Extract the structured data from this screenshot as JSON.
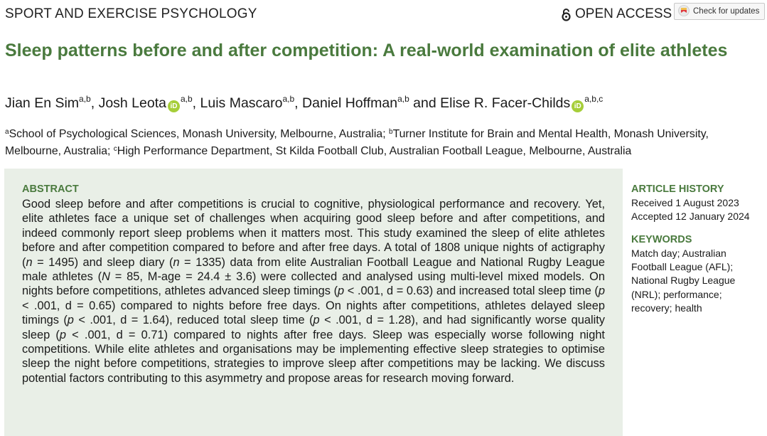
{
  "header": {
    "journal_section": "SPORT AND EXERCISE PSYCHOLOGY",
    "open_access_label": "OPEN ACCESS",
    "check_updates_label": "Check for updates"
  },
  "article": {
    "title": "Sleep patterns before and after competition: A real-world examination of elite athletes",
    "authors": [
      {
        "name": "Jian En Sim",
        "affil": "a,b",
        "orcid": false
      },
      {
        "name": "Josh Leota",
        "affil": "a,b",
        "orcid": true
      },
      {
        "name": "Luis Mascaro",
        "affil": "a,b",
        "orcid": false
      },
      {
        "name": "Daniel Hoffman",
        "affil": "a,b",
        "orcid": false
      },
      {
        "name": "Elise R. Facer-Childs",
        "affil": "a,b,c",
        "orcid": true
      }
    ],
    "author_separator": ", ",
    "author_conjunction": " and ",
    "orcid_glyph": "iD",
    "affiliations": [
      {
        "mark": "a",
        "text": "School of Psychological Sciences, Monash University, Melbourne, Australia; "
      },
      {
        "mark": "b",
        "text": "Turner Institute for Brain and Mental Health, Monash University, Melbourne, Australia; "
      },
      {
        "mark": "c",
        "text": "High Performance Department, St Kilda Football Club, Australian Football League, Melbourne, Australia"
      }
    ]
  },
  "abstract": {
    "heading": "ABSTRACT",
    "segments": [
      {
        "t": "Good sleep before and after competitions is crucial to cognitive, physiological performance and recovery. Yet, elite athletes face a unique set of challenges when acquiring good sleep before and after competitions, and indeed commonly report sleep problems when it matters most. This study examined the sleep of elite athletes before and after competition compared to before and after free days. A total of 1808 unique nights of actigraphy ("
      },
      {
        "t": "n",
        "i": true
      },
      {
        "t": " = 1495) and sleep diary ("
      },
      {
        "t": "n",
        "i": true
      },
      {
        "t": " = 1335) data from elite Australian Football League and National Rugby League male athletes ("
      },
      {
        "t": "N",
        "i": true
      },
      {
        "t": " = 85, M-age = 24.4 ± 3.6) were collected and analysed using multi-level mixed models. On nights before competitions, athletes advanced sleep timings ("
      },
      {
        "t": "p",
        "i": true
      },
      {
        "t": " < .001, d = 0.63) and increased total sleep time ("
      },
      {
        "t": "p",
        "i": true
      },
      {
        "t": " < .001, d = 0.65) compared to nights before free days. On nights after competitions, athletes delayed sleep timings ("
      },
      {
        "t": "p",
        "i": true
      },
      {
        "t": " < .001, d = 1.64), reduced total sleep time ("
      },
      {
        "t": "p",
        "i": true
      },
      {
        "t": " < .001, d = 1.28), and had significantly worse quality sleep ("
      },
      {
        "t": "p",
        "i": true
      },
      {
        "t": " < .001, d = 0.71) compared to nights after free days. Sleep was especially worse following night competitions. While elite athletes and organisations may be implementing effective sleep strategies to optimise sleep the night before competitions, strategies to improve sleep after competitions may be lacking. We discuss potential factors contributing to this asymmetry and propose areas for research moving forward."
      }
    ]
  },
  "article_history": {
    "heading": "ARTICLE HISTORY",
    "received": "Received 1 August 2023",
    "accepted": "Accepted 12 January 2024"
  },
  "keywords": {
    "heading": "KEYWORDS",
    "text": "Match day; Australian Football League (AFL); National Rugby League (NRL); performance; recovery; health"
  },
  "colors": {
    "accent_green": "#4a7a3e",
    "abstract_bg": "#e9efe7",
    "orcid_green": "#a6ce39",
    "open_access_orange": "#f7941d"
  }
}
